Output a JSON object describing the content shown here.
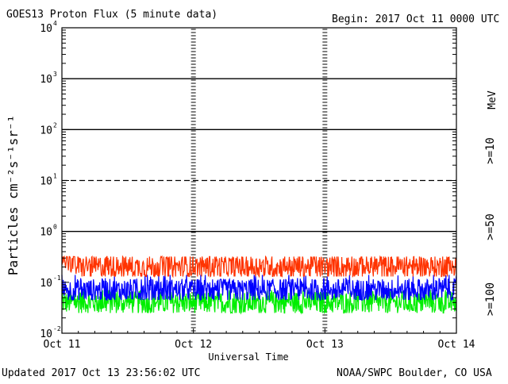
{
  "chart_data": {
    "type": "line",
    "title": "GOES13 Proton Flux (5 minute data)",
    "begin_label": "Begin: 2017 Oct 11 0000 UTC",
    "xlabel": "Universal Time",
    "ylabel": "Particles cm⁻²s⁻¹sr⁻¹",
    "updated_label": "Updated 2017 Oct 13 23:56:02 UTC",
    "source_label": "NOAA/SWPC Boulder, CO USA",
    "y_scale": "log",
    "ylim": [
      0.01,
      10000
    ],
    "xlim_hours": [
      0,
      72
    ],
    "x_ticks": [
      {
        "hours": 0,
        "label": "Oct 11"
      },
      {
        "hours": 24,
        "label": "Oct 12"
      },
      {
        "hours": 48,
        "label": "Oct 13"
      },
      {
        "hours": 72,
        "label": "Oct 14"
      }
    ],
    "y_ticks": [
      {
        "value": 0.01,
        "base": "10",
        "exp": "-2"
      },
      {
        "value": 0.1,
        "base": "10",
        "exp": "-1"
      },
      {
        "value": 1,
        "base": "10",
        "exp": "0"
      },
      {
        "value": 10,
        "base": "10",
        "exp": "1"
      },
      {
        "value": 100,
        "base": "10",
        "exp": "2"
      },
      {
        "value": 1000,
        "base": "10",
        "exp": "3"
      },
      {
        "value": 10000,
        "base": "10",
        "exp": "4"
      }
    ],
    "threshold_lines": [
      {
        "value": 10,
        "style": "dashed"
      },
      {
        "value": 1,
        "style": "solid"
      },
      {
        "value": 100,
        "style": "solid"
      },
      {
        "value": 1000,
        "style": "solid"
      }
    ],
    "legend_unit": "MeV",
    "series": [
      {
        "name": ">=10",
        "color": "#ff3300",
        "mean": 0.2,
        "low": 0.13,
        "high": 0.32,
        "start": 0.32
      },
      {
        "name": ">=50",
        "color": "#0000ff",
        "mean": 0.07,
        "low": 0.045,
        "high": 0.14
      },
      {
        "name": ">=100",
        "color": "#00ee00",
        "mean": 0.04,
        "low": 0.025,
        "high": 0.07
      }
    ]
  }
}
